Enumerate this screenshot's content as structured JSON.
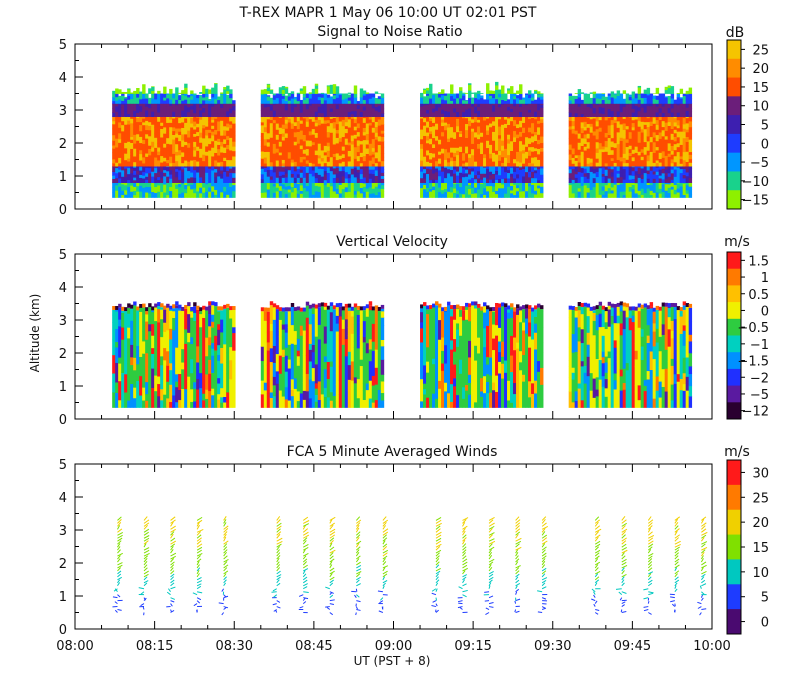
{
  "header": {
    "title": "T-REX   MAPR   1 May 06   10:00 UT   02:01   PST"
  },
  "x_axis": {
    "ticks": [
      "08:00",
      "08:15",
      "08:30",
      "08:45",
      "09:00",
      "09:15",
      "09:30",
      "09:45",
      "10:00"
    ],
    "label": "UT  (PST + 8)"
  },
  "y_axis": {
    "label": "Altitude (km)"
  },
  "chart_data": [
    {
      "type": "heatmap",
      "title": "Signal to Noise Ratio",
      "xlim": [
        "08:00",
        "10:00"
      ],
      "ylim": [
        0,
        5
      ],
      "y_ticks": [
        "0",
        "1",
        "2",
        "3",
        "4",
        "5"
      ],
      "data_segments": [
        [
          "08:07",
          "08:30"
        ],
        [
          "08:35",
          "08:58"
        ],
        [
          "09:05",
          "09:28"
        ],
        [
          "09:33",
          "09:56"
        ]
      ],
      "range_gate_bottom_km": 0.35,
      "top_of_data_km": 3.4,
      "colorbar": {
        "unit": "dB",
        "labels": [
          "25",
          "20",
          "15",
          "10",
          "5",
          "0",
          "−5",
          "−10",
          "−15"
        ],
        "colors": [
          "#f5c400",
          "#ff8c00",
          "#ff4d00",
          "#6b1e7a",
          "#3d1fb0",
          "#1e3cff",
          "#0096ff",
          "#19d28c",
          "#8ef000"
        ]
      },
      "layers_km": [
        {
          "range": [
            0.35,
            0.8
          ],
          "typical_dB": -10
        },
        {
          "range": [
            0.8,
            1.3
          ],
          "typical_dB": 2
        },
        {
          "range": [
            1.3,
            2.8
          ],
          "typical_dB": 17
        },
        {
          "range": [
            2.8,
            3.2
          ],
          "typical_dB": 7
        },
        {
          "range": [
            3.2,
            3.6
          ],
          "typical_dB": -8
        }
      ]
    },
    {
      "type": "heatmap",
      "title": "Vertical Velocity",
      "xlim": [
        "08:00",
        "10:00"
      ],
      "ylim": [
        0,
        5
      ],
      "y_ticks": [
        "0",
        "1",
        "2",
        "3",
        "4",
        "5"
      ],
      "data_segments": [
        [
          "08:07",
          "08:30"
        ],
        [
          "08:35",
          "08:58"
        ],
        [
          "09:05",
          "09:28"
        ],
        [
          "09:33",
          "09:56"
        ]
      ],
      "range_gate_bottom_km": 0.35,
      "top_of_data_km": 3.4,
      "colorbar": {
        "unit": "m/s",
        "labels": [
          "1.5",
          "1",
          "0.5",
          "0",
          "−0.5",
          "−1",
          "−1.5",
          "−2",
          "−5",
          "−12"
        ],
        "colors": [
          "#ff1a1a",
          "#ff7a00",
          "#ffc000",
          "#f0f000",
          "#2ecc40",
          "#00d0c0",
          "#0090ff",
          "#2030ff",
          "#5a1aa0",
          "#2a0030"
        ]
      },
      "typical_range_m_s": [
        -1.5,
        1
      ]
    },
    {
      "type": "scatter",
      "title": "FCA 5 Minute Averaged Winds",
      "xlim": [
        "08:00",
        "10:00"
      ],
      "ylim": [
        0,
        5
      ],
      "y_ticks": [
        "0",
        "1",
        "2",
        "3",
        "4",
        "5"
      ],
      "profile_times": [
        "08:08",
        "08:13",
        "08:18",
        "08:23",
        "08:28",
        "08:38",
        "08:43",
        "08:48",
        "08:53",
        "08:58",
        "09:08",
        "09:13",
        "09:18",
        "09:23",
        "09:28",
        "09:38",
        "09:43",
        "09:48",
        "09:53",
        "09:58"
      ],
      "altitude_range_km": [
        0.5,
        3.3
      ],
      "colorbar": {
        "unit": "m/s",
        "labels": [
          "30",
          "25",
          "20",
          "15",
          "10",
          "5",
          "0"
        ],
        "colors": [
          "#ff1a1a",
          "#ff7a00",
          "#f0d000",
          "#80e000",
          "#00c8c0",
          "#1e3cff",
          "#4a0a70"
        ]
      },
      "speed_by_altitude_m_s": [
        {
          "altitude_km": 0.8,
          "speed": 5
        },
        {
          "altitude_km": 1.5,
          "speed": 12
        },
        {
          "altitude_km": 2.2,
          "speed": 16
        },
        {
          "altitude_km": 3.0,
          "speed": 19
        }
      ]
    }
  ]
}
